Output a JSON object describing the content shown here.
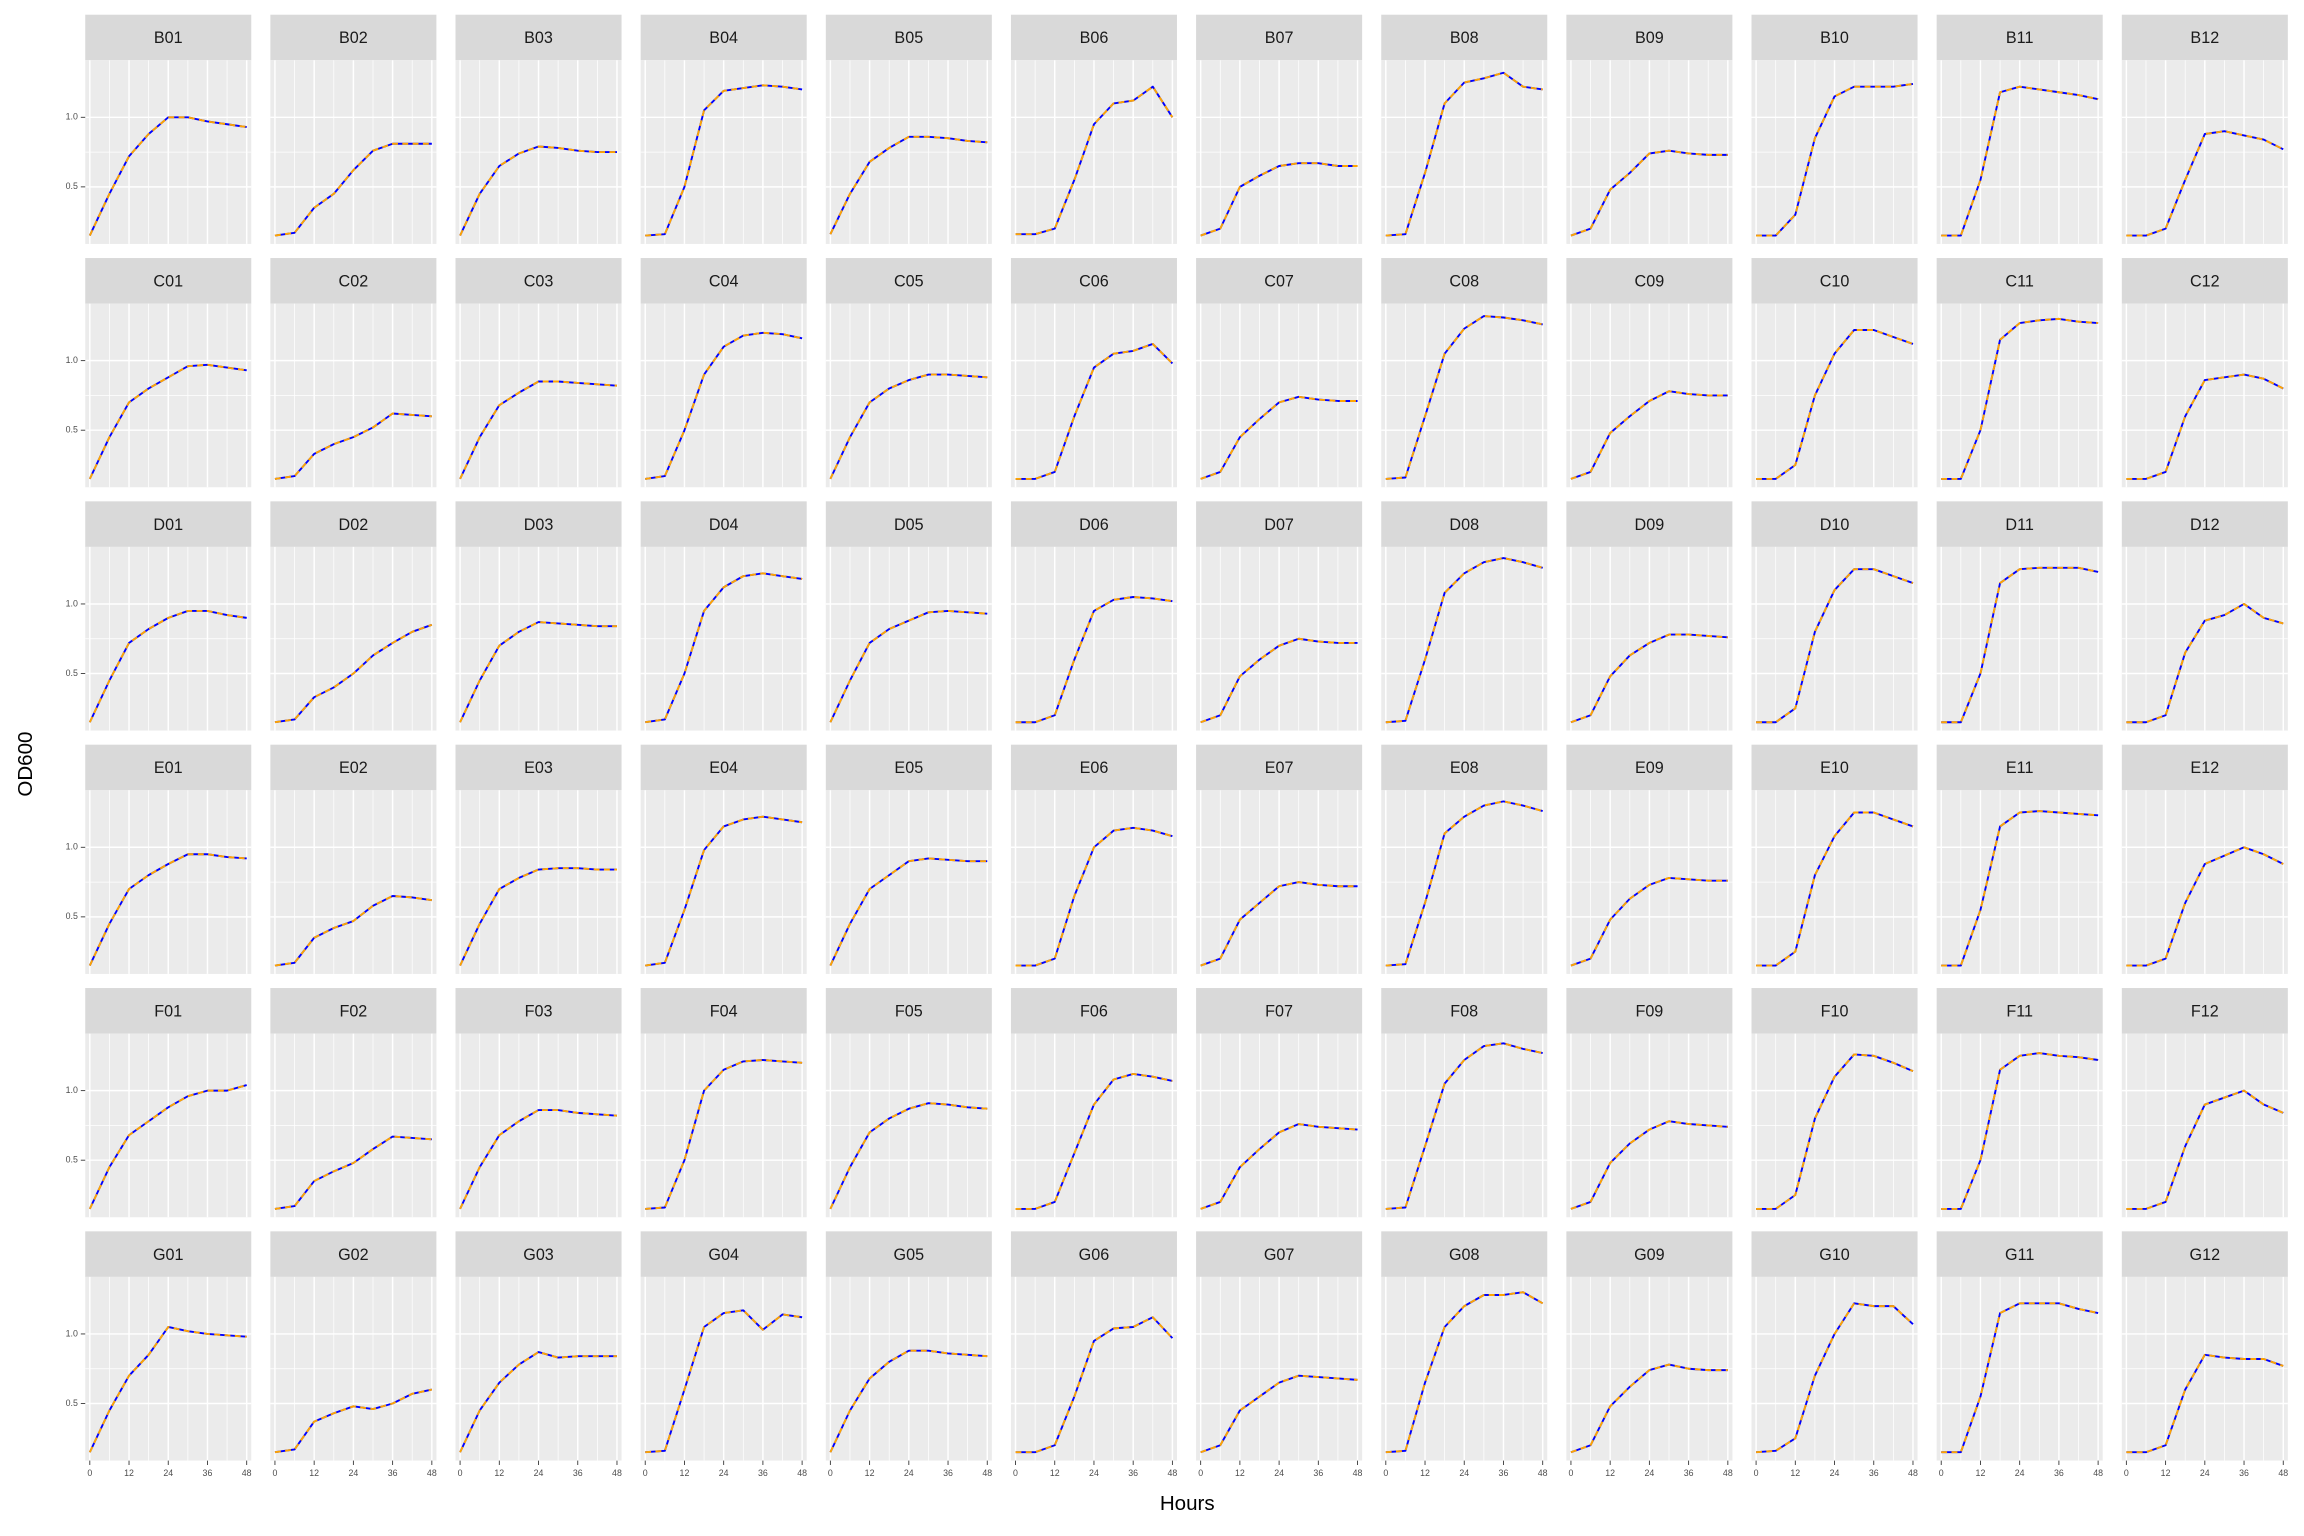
{
  "chart_data": {
    "type": "line",
    "xlabel": "Hours",
    "ylabel": "OD600",
    "x": [
      0,
      6,
      12,
      18,
      24,
      30,
      36,
      42,
      48
    ],
    "xlim": [
      -1.4,
      49.4
    ],
    "xticks": [
      0,
      12,
      24,
      36,
      48
    ],
    "ylim": [
      0.09,
      1.41
    ],
    "yticks": [
      0.5,
      {
        "value": 1.0,
        "label": "1.0"
      }
    ],
    "grid": true,
    "colors": [
      "#0000ff",
      "#ffa500"
    ],
    "panels": [
      {
        "title": "B01",
        "values": [
          0.15,
          0.45,
          0.72,
          0.88,
          1.0,
          1.0,
          0.97,
          0.95,
          0.93
        ]
      },
      {
        "title": "B02",
        "values": [
          0.15,
          0.17,
          0.35,
          0.45,
          0.62,
          0.76,
          0.81,
          0.81,
          0.81
        ]
      },
      {
        "title": "B03",
        "values": [
          0.15,
          0.45,
          0.65,
          0.74,
          0.79,
          0.78,
          0.76,
          0.75,
          0.75
        ]
      },
      {
        "title": "B04",
        "values": [
          0.15,
          0.16,
          0.5,
          1.05,
          1.19,
          1.21,
          1.23,
          1.22,
          1.2
        ]
      },
      {
        "title": "B05",
        "values": [
          0.16,
          0.45,
          0.68,
          0.78,
          0.86,
          0.86,
          0.85,
          0.83,
          0.82
        ]
      },
      {
        "title": "B06",
        "values": [
          0.16,
          0.16,
          0.2,
          0.55,
          0.95,
          1.1,
          1.12,
          1.22,
          1.0
        ]
      },
      {
        "title": "B07",
        "values": [
          0.15,
          0.2,
          0.5,
          0.58,
          0.65,
          0.67,
          0.67,
          0.65,
          0.65
        ]
      },
      {
        "title": "B08",
        "values": [
          0.15,
          0.16,
          0.6,
          1.1,
          1.25,
          1.28,
          1.32,
          1.22,
          1.2
        ]
      },
      {
        "title": "B09",
        "values": [
          0.15,
          0.2,
          0.48,
          0.6,
          0.74,
          0.76,
          0.74,
          0.73,
          0.73
        ]
      },
      {
        "title": "B10",
        "values": [
          0.15,
          0.15,
          0.3,
          0.85,
          1.15,
          1.22,
          1.22,
          1.22,
          1.24
        ]
      },
      {
        "title": "B11",
        "values": [
          0.15,
          0.15,
          0.55,
          1.18,
          1.22,
          1.2,
          1.18,
          1.16,
          1.13
        ]
      },
      {
        "title": "B12",
        "values": [
          0.15,
          0.15,
          0.2,
          0.55,
          0.88,
          0.9,
          0.87,
          0.84,
          0.77
        ]
      },
      {
        "title": "C01",
        "values": [
          0.15,
          0.45,
          0.7,
          0.8,
          0.88,
          0.96,
          0.97,
          0.95,
          0.93
        ]
      },
      {
        "title": "C02",
        "values": [
          0.15,
          0.17,
          0.33,
          0.4,
          0.45,
          0.52,
          0.62,
          0.61,
          0.6
        ]
      },
      {
        "title": "C03",
        "values": [
          0.15,
          0.45,
          0.68,
          0.77,
          0.85,
          0.85,
          0.84,
          0.83,
          0.82
        ]
      },
      {
        "title": "C04",
        "values": [
          0.15,
          0.17,
          0.5,
          0.9,
          1.1,
          1.18,
          1.2,
          1.19,
          1.16
        ]
      },
      {
        "title": "C05",
        "values": [
          0.15,
          0.45,
          0.7,
          0.8,
          0.86,
          0.9,
          0.9,
          0.89,
          0.88
        ]
      },
      {
        "title": "C06",
        "values": [
          0.15,
          0.15,
          0.2,
          0.6,
          0.95,
          1.05,
          1.07,
          1.12,
          0.98
        ]
      },
      {
        "title": "C07",
        "values": [
          0.15,
          0.2,
          0.45,
          0.58,
          0.7,
          0.74,
          0.72,
          0.71,
          0.71
        ]
      },
      {
        "title": "C08",
        "values": [
          0.15,
          0.16,
          0.6,
          1.05,
          1.23,
          1.32,
          1.31,
          1.29,
          1.26
        ]
      },
      {
        "title": "C09",
        "values": [
          0.15,
          0.2,
          0.48,
          0.6,
          0.71,
          0.78,
          0.76,
          0.75,
          0.75
        ]
      },
      {
        "title": "C10",
        "values": [
          0.15,
          0.15,
          0.25,
          0.75,
          1.05,
          1.22,
          1.22,
          1.17,
          1.12
        ]
      },
      {
        "title": "C11",
        "values": [
          0.15,
          0.15,
          0.5,
          1.15,
          1.27,
          1.29,
          1.3,
          1.28,
          1.27
        ]
      },
      {
        "title": "C12",
        "values": [
          0.15,
          0.15,
          0.2,
          0.6,
          0.86,
          0.88,
          0.9,
          0.87,
          0.8
        ]
      },
      {
        "title": "D01",
        "values": [
          0.15,
          0.45,
          0.72,
          0.82,
          0.9,
          0.95,
          0.95,
          0.92,
          0.9
        ]
      },
      {
        "title": "D02",
        "values": [
          0.15,
          0.17,
          0.33,
          0.4,
          0.5,
          0.63,
          0.72,
          0.8,
          0.85
        ]
      },
      {
        "title": "D03",
        "values": [
          0.15,
          0.45,
          0.7,
          0.8,
          0.87,
          0.86,
          0.85,
          0.84,
          0.84
        ]
      },
      {
        "title": "D04",
        "values": [
          0.15,
          0.17,
          0.5,
          0.95,
          1.12,
          1.2,
          1.22,
          1.2,
          1.18
        ]
      },
      {
        "title": "D05",
        "values": [
          0.15,
          0.45,
          0.72,
          0.82,
          0.88,
          0.94,
          0.95,
          0.94,
          0.93
        ]
      },
      {
        "title": "D06",
        "values": [
          0.15,
          0.15,
          0.2,
          0.6,
          0.95,
          1.03,
          1.05,
          1.04,
          1.02
        ]
      },
      {
        "title": "D07",
        "values": [
          0.15,
          0.2,
          0.48,
          0.6,
          0.7,
          0.75,
          0.73,
          0.72,
          0.72
        ]
      },
      {
        "title": "D08",
        "values": [
          0.15,
          0.16,
          0.6,
          1.08,
          1.22,
          1.3,
          1.33,
          1.3,
          1.26
        ]
      },
      {
        "title": "D09",
        "values": [
          0.15,
          0.2,
          0.48,
          0.63,
          0.72,
          0.78,
          0.78,
          0.77,
          0.76
        ]
      },
      {
        "title": "D10",
        "values": [
          0.15,
          0.15,
          0.25,
          0.8,
          1.1,
          1.25,
          1.25,
          1.2,
          1.15
        ]
      },
      {
        "title": "D11",
        "values": [
          0.15,
          0.15,
          0.5,
          1.15,
          1.25,
          1.26,
          1.26,
          1.26,
          1.23
        ]
      },
      {
        "title": "D12",
        "values": [
          0.15,
          0.15,
          0.2,
          0.65,
          0.88,
          0.92,
          1.0,
          0.9,
          0.86
        ]
      },
      {
        "title": "E01",
        "values": [
          0.15,
          0.45,
          0.7,
          0.8,
          0.88,
          0.95,
          0.95,
          0.93,
          0.92
        ]
      },
      {
        "title": "E02",
        "values": [
          0.15,
          0.17,
          0.35,
          0.42,
          0.47,
          0.58,
          0.65,
          0.64,
          0.62
        ]
      },
      {
        "title": "E03",
        "values": [
          0.15,
          0.45,
          0.7,
          0.78,
          0.84,
          0.85,
          0.85,
          0.84,
          0.84
        ]
      },
      {
        "title": "E04",
        "values": [
          0.15,
          0.17,
          0.55,
          0.98,
          1.15,
          1.2,
          1.22,
          1.2,
          1.18
        ]
      },
      {
        "title": "E05",
        "values": [
          0.15,
          0.45,
          0.7,
          0.8,
          0.9,
          0.92,
          0.91,
          0.9,
          0.9
        ]
      },
      {
        "title": "E06",
        "values": [
          0.15,
          0.15,
          0.2,
          0.65,
          1.0,
          1.12,
          1.14,
          1.12,
          1.08
        ]
      },
      {
        "title": "E07",
        "values": [
          0.15,
          0.2,
          0.48,
          0.6,
          0.72,
          0.75,
          0.73,
          0.72,
          0.72
        ]
      },
      {
        "title": "E08",
        "values": [
          0.15,
          0.16,
          0.6,
          1.1,
          1.22,
          1.3,
          1.33,
          1.3,
          1.26
        ]
      },
      {
        "title": "E09",
        "values": [
          0.15,
          0.2,
          0.48,
          0.63,
          0.73,
          0.78,
          0.77,
          0.76,
          0.76
        ]
      },
      {
        "title": "E10",
        "values": [
          0.15,
          0.15,
          0.25,
          0.8,
          1.08,
          1.25,
          1.25,
          1.2,
          1.15
        ]
      },
      {
        "title": "E11",
        "values": [
          0.15,
          0.15,
          0.55,
          1.15,
          1.25,
          1.26,
          1.25,
          1.24,
          1.23
        ]
      },
      {
        "title": "E12",
        "values": [
          0.15,
          0.15,
          0.2,
          0.6,
          0.88,
          0.94,
          1.0,
          0.95,
          0.88
        ]
      },
      {
        "title": "F01",
        "values": [
          0.15,
          0.45,
          0.68,
          0.78,
          0.88,
          0.96,
          1.0,
          1.0,
          1.04
        ]
      },
      {
        "title": "F02",
        "values": [
          0.15,
          0.17,
          0.35,
          0.42,
          0.48,
          0.58,
          0.67,
          0.66,
          0.65
        ]
      },
      {
        "title": "F03",
        "values": [
          0.15,
          0.45,
          0.68,
          0.78,
          0.86,
          0.86,
          0.84,
          0.83,
          0.82
        ]
      },
      {
        "title": "F04",
        "values": [
          0.15,
          0.16,
          0.5,
          1.0,
          1.15,
          1.21,
          1.22,
          1.21,
          1.2
        ]
      },
      {
        "title": "F05",
        "values": [
          0.15,
          0.45,
          0.7,
          0.8,
          0.87,
          0.91,
          0.9,
          0.88,
          0.87
        ]
      },
      {
        "title": "F06",
        "values": [
          0.15,
          0.15,
          0.2,
          0.55,
          0.9,
          1.08,
          1.12,
          1.1,
          1.07
        ]
      },
      {
        "title": "F07",
        "values": [
          0.15,
          0.2,
          0.45,
          0.58,
          0.7,
          0.76,
          0.74,
          0.73,
          0.72
        ]
      },
      {
        "title": "F08",
        "values": [
          0.15,
          0.16,
          0.6,
          1.05,
          1.22,
          1.32,
          1.34,
          1.3,
          1.27
        ]
      },
      {
        "title": "F09",
        "values": [
          0.15,
          0.2,
          0.48,
          0.62,
          0.72,
          0.78,
          0.76,
          0.75,
          0.74
        ]
      },
      {
        "title": "F10",
        "values": [
          0.15,
          0.15,
          0.25,
          0.8,
          1.1,
          1.26,
          1.25,
          1.2,
          1.14
        ]
      },
      {
        "title": "F11",
        "values": [
          0.15,
          0.15,
          0.5,
          1.15,
          1.25,
          1.27,
          1.25,
          1.24,
          1.22
        ]
      },
      {
        "title": "F12",
        "values": [
          0.15,
          0.15,
          0.2,
          0.6,
          0.9,
          0.95,
          1.0,
          0.9,
          0.84
        ]
      },
      {
        "title": "G01",
        "values": [
          0.15,
          0.45,
          0.7,
          0.85,
          1.05,
          1.02,
          1.0,
          0.99,
          0.98
        ]
      },
      {
        "title": "G02",
        "values": [
          0.15,
          0.17,
          0.37,
          0.43,
          0.48,
          0.46,
          0.5,
          0.57,
          0.6
        ]
      },
      {
        "title": "G03",
        "values": [
          0.15,
          0.45,
          0.65,
          0.78,
          0.87,
          0.83,
          0.84,
          0.84,
          0.84
        ]
      },
      {
        "title": "G04",
        "values": [
          0.15,
          0.16,
          0.6,
          1.05,
          1.15,
          1.17,
          1.03,
          1.14,
          1.12
        ]
      },
      {
        "title": "G05",
        "values": [
          0.15,
          0.45,
          0.68,
          0.8,
          0.88,
          0.88,
          0.86,
          0.85,
          0.84
        ]
      },
      {
        "title": "G06",
        "values": [
          0.15,
          0.15,
          0.2,
          0.55,
          0.95,
          1.04,
          1.05,
          1.12,
          0.97
        ]
      },
      {
        "title": "G07",
        "values": [
          0.15,
          0.2,
          0.45,
          0.55,
          0.65,
          0.7,
          0.69,
          0.68,
          0.67
        ]
      },
      {
        "title": "G08",
        "values": [
          0.15,
          0.16,
          0.65,
          1.05,
          1.2,
          1.28,
          1.28,
          1.3,
          1.22
        ]
      },
      {
        "title": "G09",
        "values": [
          0.15,
          0.2,
          0.48,
          0.62,
          0.74,
          0.78,
          0.75,
          0.74,
          0.74
        ]
      },
      {
        "title": "G10",
        "values": [
          0.15,
          0.16,
          0.25,
          0.7,
          1.0,
          1.22,
          1.2,
          1.2,
          1.07
        ]
      },
      {
        "title": "G11",
        "values": [
          0.15,
          0.15,
          0.55,
          1.15,
          1.22,
          1.22,
          1.22,
          1.18,
          1.15
        ]
      },
      {
        "title": "G12",
        "values": [
          0.15,
          0.15,
          0.2,
          0.6,
          0.85,
          0.83,
          0.82,
          0.82,
          0.77
        ]
      }
    ]
  }
}
